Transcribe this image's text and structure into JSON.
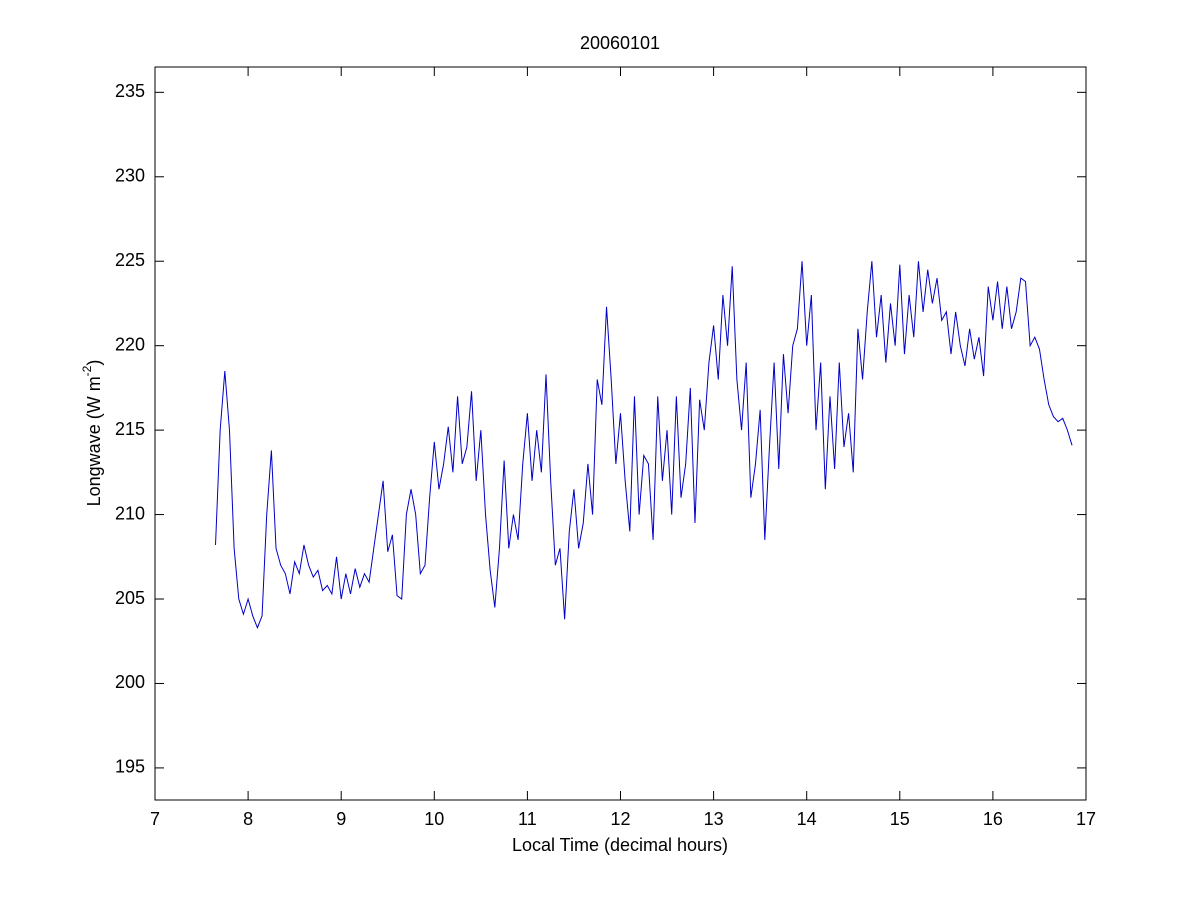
{
  "chart_data": {
    "type": "line",
    "title": "20060101",
    "xlabel": "Local Time (decimal hours)",
    "ylabel": [
      "Longwave (W m",
      "-2",
      ")"
    ],
    "xlim": [
      7,
      17
    ],
    "xticks": [
      7,
      8,
      9,
      10,
      11,
      12,
      13,
      14,
      15,
      16,
      17
    ],
    "ylim": [
      193.1,
      236.5
    ],
    "yticks": [
      195,
      200,
      205,
      210,
      215,
      220,
      225,
      230,
      235
    ],
    "series": [
      {
        "color": "#0000c8",
        "x": [
          7.65,
          7.7,
          7.75,
          7.8,
          7.85,
          7.9,
          7.95,
          8.0,
          8.05,
          8.1,
          8.15,
          8.2,
          8.25,
          8.3,
          8.35,
          8.4,
          8.45,
          8.5,
          8.55,
          8.6,
          8.65,
          8.7,
          8.75,
          8.8,
          8.85,
          8.9,
          8.95,
          9.0,
          9.05,
          9.1,
          9.15,
          9.2,
          9.25,
          9.3,
          9.35,
          9.4,
          9.45,
          9.5,
          9.55,
          9.6,
          9.65,
          9.7,
          9.75,
          9.8,
          9.85,
          9.9,
          9.95,
          10.0,
          10.05,
          10.1,
          10.15,
          10.2,
          10.25,
          10.3,
          10.35,
          10.4,
          10.45,
          10.5,
          10.55,
          10.6,
          10.65,
          10.7,
          10.75,
          10.8,
          10.85,
          10.9,
          10.95,
          11.0,
          11.05,
          11.1,
          11.15,
          11.2,
          11.25,
          11.3,
          11.35,
          11.4,
          11.45,
          11.5,
          11.55,
          11.6,
          11.65,
          11.7,
          11.75,
          11.8,
          11.85,
          11.9,
          11.95,
          12.0,
          12.05,
          12.1,
          12.15,
          12.2,
          12.25,
          12.3,
          12.35,
          12.4,
          12.45,
          12.5,
          12.55,
          12.6,
          12.65,
          12.7,
          12.75,
          12.8,
          12.85,
          12.9,
          12.95,
          13.0,
          13.05,
          13.1,
          13.15,
          13.2,
          13.25,
          13.3,
          13.35,
          13.4,
          13.45,
          13.5,
          13.55,
          13.6,
          13.65,
          13.7,
          13.75,
          13.8,
          13.85,
          13.9,
          13.95,
          14.0,
          14.05,
          14.1,
          14.15,
          14.2,
          14.25,
          14.3,
          14.35,
          14.4,
          14.45,
          14.5,
          14.55,
          14.6,
          14.65,
          14.7,
          14.75,
          14.8,
          14.85,
          14.9,
          14.95,
          15.0,
          15.05,
          15.1,
          15.15,
          15.2,
          15.25,
          15.3,
          15.35,
          15.4,
          15.45,
          15.5,
          15.55,
          15.6,
          15.65,
          15.7,
          15.75,
          15.8,
          15.85,
          15.9,
          15.95,
          16.0,
          16.05,
          16.1,
          16.15,
          16.2,
          16.25,
          16.3,
          16.35,
          16.4,
          16.45,
          16.5,
          16.55,
          16.6,
          16.65,
          16.7,
          16.75,
          16.8,
          16.85
        ],
        "values": [
          208.2,
          215,
          218.5,
          215,
          208,
          205,
          204.1,
          205,
          204,
          203.3,
          204,
          210,
          213.8,
          208,
          207,
          206.5,
          205.3,
          207.2,
          206.5,
          208.2,
          207,
          206.3,
          206.7,
          205.5,
          205.8,
          205.3,
          207.5,
          205,
          206.5,
          205.3,
          206.8,
          205.7,
          206.5,
          206,
          208,
          210,
          212,
          207.8,
          208.8,
          205.2,
          205,
          210,
          211.5,
          210,
          206.5,
          207,
          211,
          214.3,
          211.5,
          213,
          215.2,
          212.5,
          217,
          213,
          214,
          217.3,
          212,
          215,
          210,
          206.7,
          204.5,
          208,
          213.2,
          208,
          210,
          208.5,
          213,
          216,
          212,
          215,
          212.5,
          218.3,
          212,
          207,
          208,
          203.8,
          209,
          211.5,
          208,
          209.5,
          213,
          210,
          218,
          216.5,
          222.3,
          218,
          213,
          216,
          212,
          209,
          217,
          210,
          213.5,
          213,
          208.5,
          217,
          212,
          215,
          210,
          217,
          211,
          213,
          217.5,
          209.5,
          216.8,
          215,
          219,
          221.2,
          218,
          223,
          220,
          224.7,
          218,
          215,
          219,
          211,
          213,
          216.2,
          208.5,
          214,
          219,
          212.7,
          219.5,
          216,
          220,
          221,
          225,
          220,
          223,
          215,
          219,
          211.5,
          217,
          212.7,
          219,
          214,
          216,
          212.5,
          221,
          218,
          222,
          225,
          220.5,
          223,
          219,
          222.5,
          220,
          224.8,
          219.5,
          223,
          220.5,
          225,
          222,
          224.5,
          222.5,
          224,
          221.5,
          222,
          219.5,
          222,
          220,
          218.8,
          221,
          219.2,
          220.5,
          218.2,
          223.5,
          221.5,
          223.8,
          221,
          223.5,
          221,
          222,
          224,
          223.8,
          220,
          220.5,
          219.8,
          218,
          216.5,
          215.8,
          215.5,
          215.7,
          215,
          214.1
        ]
      }
    ]
  }
}
